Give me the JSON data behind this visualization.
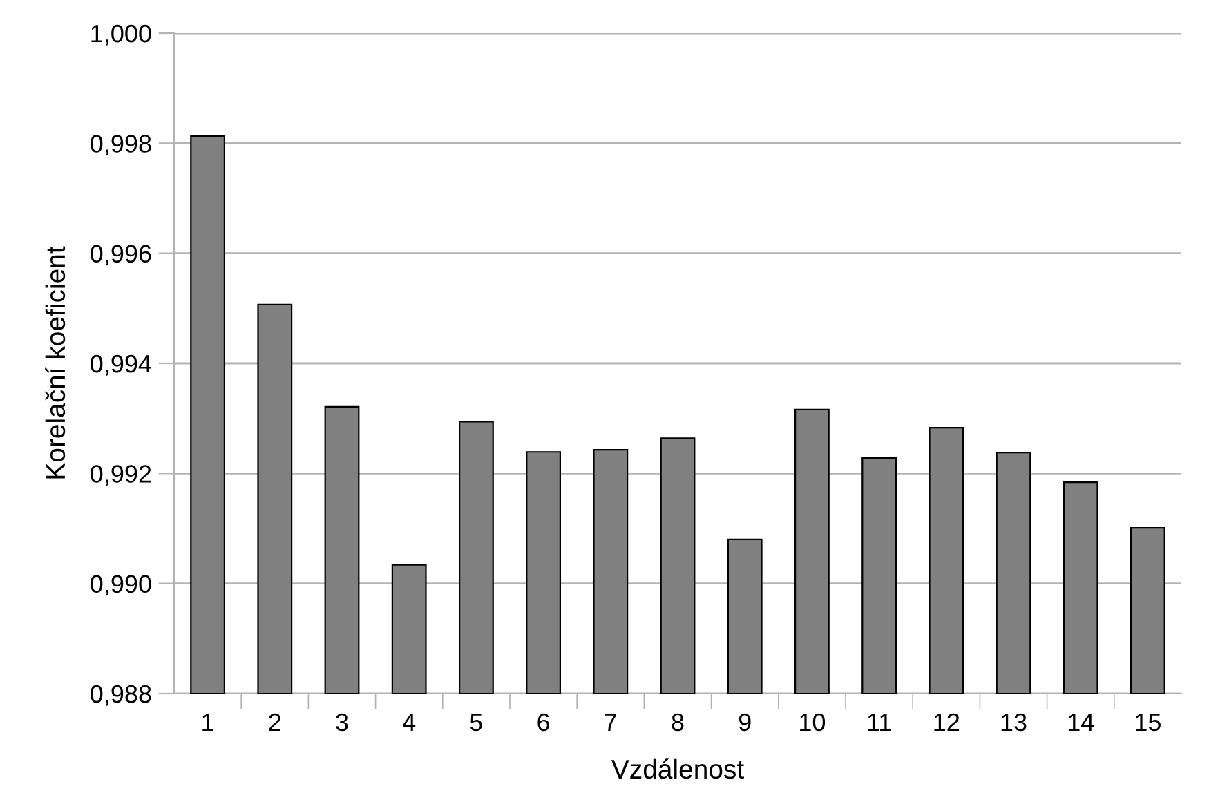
{
  "chart_data": {
    "type": "bar",
    "xlabel": "Vzdálenost",
    "ylabel": "Korelační koeficient",
    "categories": [
      "1",
      "2",
      "3",
      "4",
      "5",
      "6",
      "7",
      "8",
      "9",
      "10",
      "11",
      "12",
      "13",
      "14",
      "15"
    ],
    "values": [
      0.99813,
      0.99507,
      0.99321,
      0.99034,
      0.99294,
      0.99239,
      0.99243,
      0.99264,
      0.9908,
      0.99316,
      0.99228,
      0.99283,
      0.99238,
      0.99184,
      0.99101
    ],
    "color": "#808080",
    "ylim": [
      0.988,
      1.0
    ],
    "yticks": [
      {
        "value": 0.988,
        "label": "0,988"
      },
      {
        "value": 0.99,
        "label": "0,990"
      },
      {
        "value": 0.992,
        "label": "0,992"
      },
      {
        "value": 0.994,
        "label": "0,994"
      },
      {
        "value": 0.996,
        "label": "0,996"
      },
      {
        "value": 0.998,
        "label": "0,998"
      },
      {
        "value": 1.0,
        "label": "1,000"
      }
    ],
    "grid": "y",
    "legend": false
  }
}
